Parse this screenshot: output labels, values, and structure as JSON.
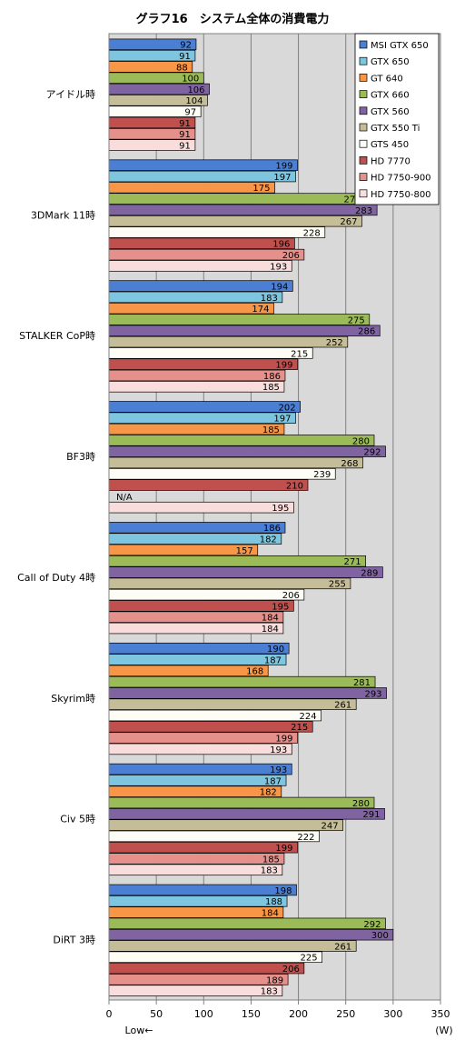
{
  "chart_data": {
    "type": "bar",
    "orientation": "horizontal",
    "title": "グラフ16　システム全体の消費電力",
    "xlabel": "Low←",
    "unit": "(W)",
    "xlim": [
      0,
      350
    ],
    "xticks": [
      0,
      50,
      100,
      150,
      200,
      250,
      300,
      350
    ],
    "grid": true,
    "legend_position": "top-right",
    "categories": [
      "アイドル時",
      "3DMark 11時",
      "STALKER  CoP時",
      "BF3時",
      "Call of Duty 4時",
      "Skyrim時",
      "Civ 5時",
      "DiRT 3時"
    ],
    "series": [
      {
        "name": "MSI GTX 650",
        "color": "#4a7fd4",
        "values": [
          92,
          199,
          194,
          202,
          186,
          190,
          193,
          198
        ]
      },
      {
        "name": "GTX 650",
        "color": "#7ec6e0",
        "values": [
          91,
          197,
          183,
          197,
          182,
          187,
          187,
          188
        ]
      },
      {
        "name": "GT 640",
        "color": "#f79646",
        "values": [
          88,
          175,
          174,
          185,
          157,
          168,
          182,
          184
        ]
      },
      {
        "name": "GTX 660",
        "color": "#9bbb59",
        "values": [
          100,
          271,
          275,
          280,
          271,
          281,
          280,
          292
        ]
      },
      {
        "name": "GTX 560",
        "color": "#8064a2",
        "values": [
          106,
          283,
          286,
          292,
          289,
          293,
          291,
          300
        ]
      },
      {
        "name": "GTX 550 Ti",
        "color": "#c4bd97",
        "values": [
          104,
          267,
          252,
          268,
          255,
          261,
          247,
          261
        ]
      },
      {
        "name": "GTS 450",
        "color": "#fdfdf5",
        "values": [
          97,
          228,
          215,
          239,
          206,
          224,
          222,
          225
        ]
      },
      {
        "name": "HD 7770",
        "color": "#c0504d",
        "values": [
          91,
          196,
          199,
          210,
          195,
          215,
          199,
          206
        ]
      },
      {
        "name": "HD 7750-900",
        "color": "#e6908c",
        "values": [
          91,
          206,
          186,
          null,
          184,
          199,
          185,
          189
        ]
      },
      {
        "name": "HD 7750-800",
        "color": "#f9dcdc",
        "values": [
          91,
          193,
          185,
          195,
          184,
          193,
          183,
          183
        ]
      }
    ],
    "missing_label": "N/A"
  }
}
